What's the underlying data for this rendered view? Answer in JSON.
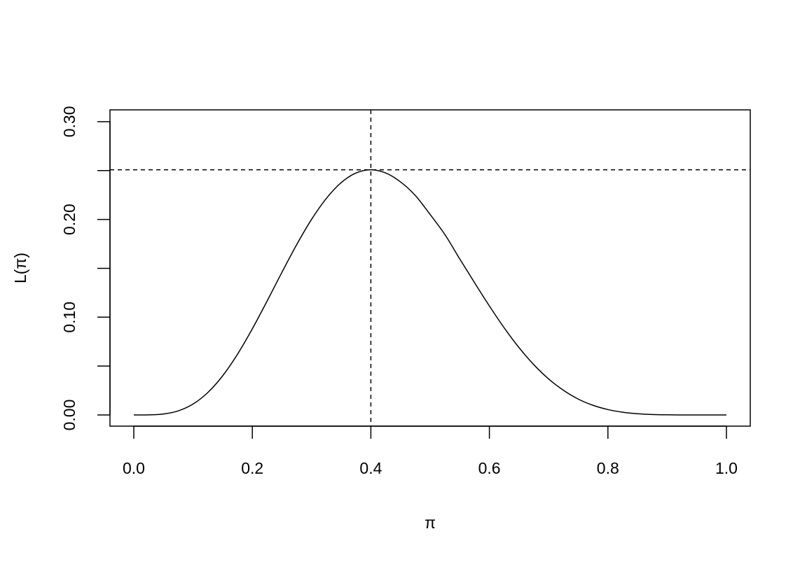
{
  "chart_data": {
    "type": "line",
    "title": "",
    "xlabel": "π",
    "ylabel": "L(π)",
    "xlim": [
      -0.04,
      1.04
    ],
    "ylim": [
      -0.012,
      0.312
    ],
    "grid": false,
    "legend": "none",
    "line_color": "#000000",
    "x_ticks": [
      0.0,
      0.2,
      0.4,
      0.6,
      0.8,
      1.0
    ],
    "x_tick_labels": [
      "0.0",
      "0.2",
      "0.4",
      "0.6",
      "0.8",
      "1.0"
    ],
    "y_ticks": [
      0.0,
      0.05,
      0.1,
      0.15,
      0.2,
      0.25,
      0.3
    ],
    "y_tick_labels": [
      "0.00",
      "",
      "0.10",
      "",
      "0.20",
      "",
      "0.30"
    ],
    "reference_lines": {
      "vertical_x": 0.4,
      "horizontal_y": 0.2508,
      "style": "dashed"
    },
    "series": [
      {
        "x": [
          0,
          0.025,
          0.05,
          0.075,
          0.1,
          0.125,
          0.15,
          0.175,
          0.2,
          0.225,
          0.25,
          0.275,
          0.3,
          0.325,
          0.35,
          0.375,
          0.4,
          0.425,
          0.45,
          0.475,
          0.5,
          0.525,
          0.55,
          0.575,
          0.6,
          0.625,
          0.65,
          0.675,
          0.7,
          0.725,
          0.75,
          0.775,
          0.8,
          0.825,
          0.85,
          0.875,
          0.9,
          0.925,
          0.95,
          0.975,
          1
        ],
        "y": [
          0,
          7e-05,
          0.00097,
          0.00416,
          0.01116,
          0.023,
          0.0401,
          0.0621,
          0.0881,
          0.1166,
          0.146,
          0.1744,
          0.2001,
          0.2216,
          0.2377,
          0.2475,
          0.2508,
          0.2475,
          0.2384,
          0.2245,
          0.2051,
          0.1845,
          0.1596,
          0.1353,
          0.1115,
          0.0891,
          0.0689,
          0.0514,
          0.0368,
          0.0252,
          0.0162,
          0.00983,
          0.00551,
          0.00279,
          0.00125,
          0.00047,
          0.00014,
          3e-05,
          0,
          0,
          0
        ]
      }
    ]
  }
}
